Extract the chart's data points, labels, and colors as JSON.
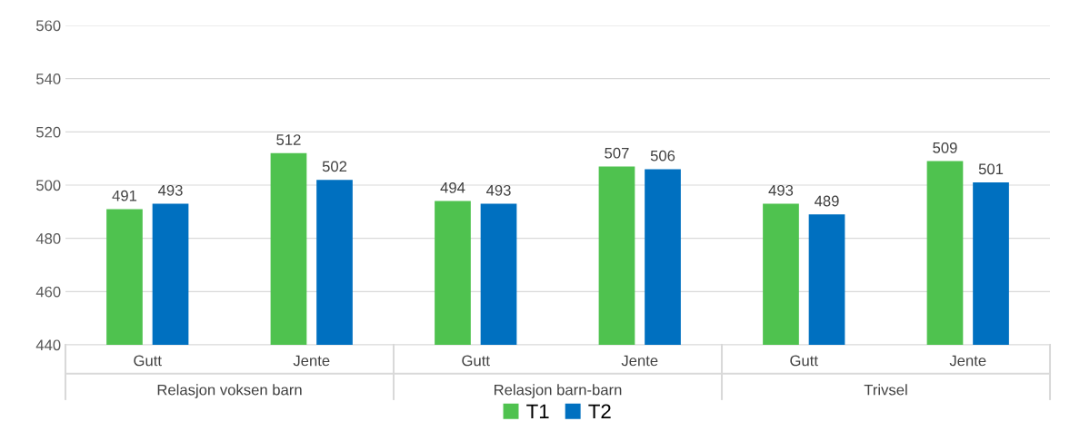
{
  "chart_data": {
    "type": "bar",
    "categories": [
      "Gutt",
      "Jente",
      "Gutt",
      "Jente",
      "Gutt",
      "Jente"
    ],
    "annotations": [
      "Relasjon voksen barn",
      "Relasjon barn-barn",
      "Trivsel"
    ],
    "series": [
      {
        "name": "T1",
        "color": "#4fc24f",
        "values": [
          491,
          512,
          494,
          507,
          493,
          509
        ]
      },
      {
        "name": "T2",
        "color": "#0070c0",
        "values": [
          493,
          502,
          493,
          506,
          489,
          501
        ]
      }
    ],
    "ylim": [
      440,
      560
    ],
    "yticks": [
      440,
      460,
      480,
      500,
      520,
      540,
      560
    ],
    "grid": "y",
    "legend": "bottom",
    "data_labels": true
  }
}
